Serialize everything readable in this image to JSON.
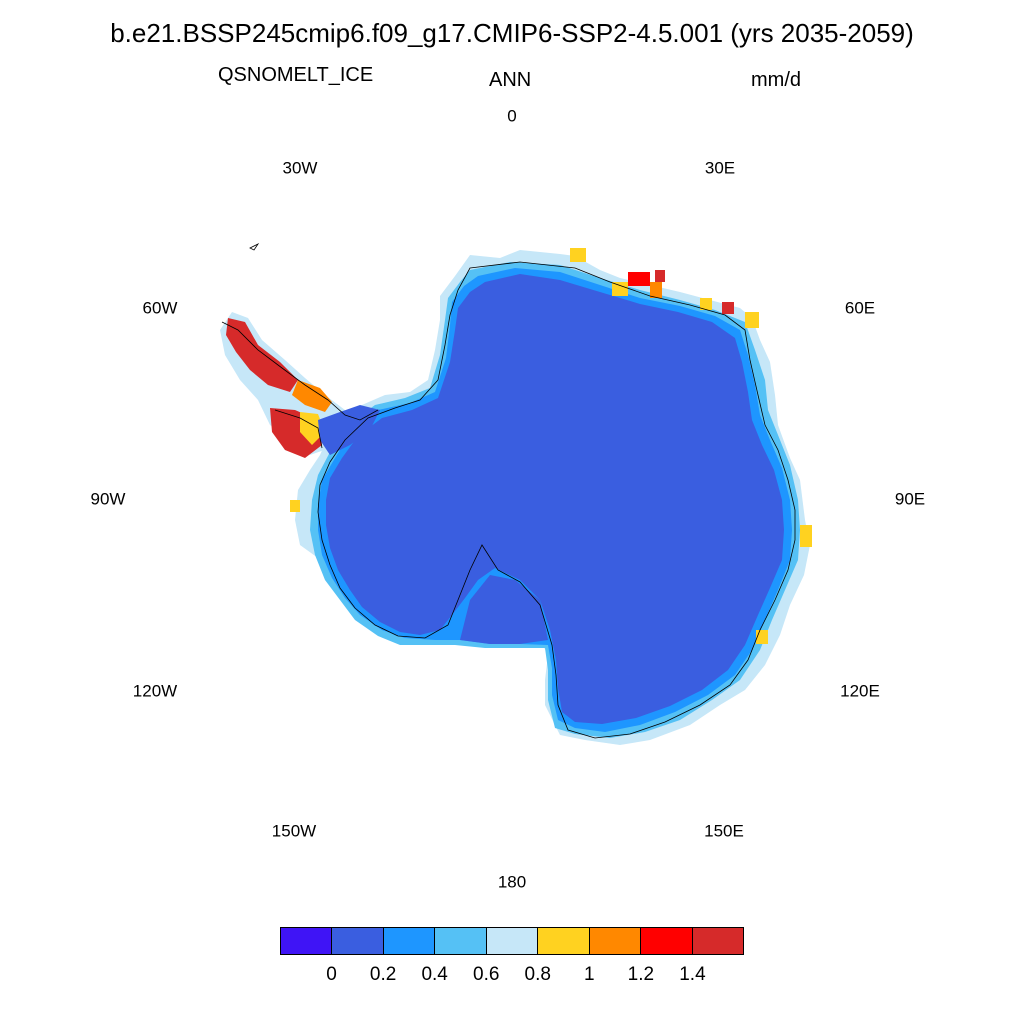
{
  "header": {
    "title": "b.e21.BSSP245cmip6.f09_g17.CMIP6-SSP2-4.5.001 (yrs 2035-2059)",
    "variable": "QSNOMELT_ICE",
    "season": "ANN",
    "units": "mm/d"
  },
  "map": {
    "projection": "south-polar-stereographic",
    "region": "Antarctica",
    "longitude_labels": [
      "0",
      "30E",
      "60E",
      "90E",
      "120E",
      "150E",
      "180",
      "150W",
      "120W",
      "90W",
      "60W",
      "30W"
    ],
    "dominant_value_range": "0-0.2",
    "colors": {
      "interior": "#3a5ee0",
      "coast_low": "#1e96ff",
      "coast_mid": "#55c1f5",
      "coast_light": "#c6e7f8",
      "high_melt": "#d62a2a"
    }
  },
  "colorbar": {
    "labels": [
      "0",
      "0.2",
      "0.4",
      "0.6",
      "0.8",
      "1",
      "1.2",
      "1.4"
    ],
    "colors": [
      "#3f14f6",
      "#3a5ee0",
      "#1e96ff",
      "#55c1f5",
      "#c6e7f8",
      "#ffd220",
      "#ff8800",
      "#ff0000",
      "#d62a2a"
    ]
  }
}
